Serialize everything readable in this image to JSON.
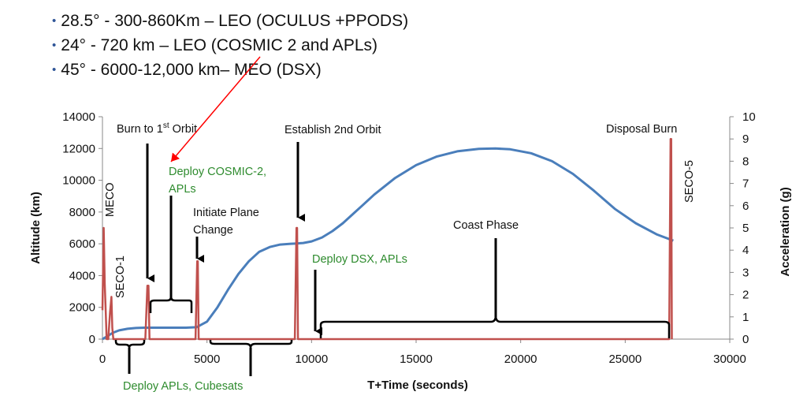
{
  "bullets": [
    "28.5° - 300-860Km – LEO (OCULUS +PPODS)",
    "24° - 720 km – LEO (COSMIC 2 and APLs)",
    "45° - 6000-12,000 km– MEO (DSX)"
  ],
  "colors": {
    "altitude": "#4a7ebb",
    "acceleration": "#c0504d",
    "pointer": "#ff0000",
    "green_text": "#2e8b2e",
    "bullet_dot": "#2f5597"
  },
  "chart_data": {
    "type": "line",
    "xlabel": "T+Time (seconds)",
    "ylabel": "Altitude (km)",
    "y2label": "Acceleration (g)",
    "xlim": [
      0,
      30000
    ],
    "ylim": [
      0,
      14000
    ],
    "y2lim": [
      0,
      10
    ],
    "xticks": [
      0,
      5000,
      10000,
      15000,
      20000,
      25000,
      30000
    ],
    "yticks": [
      0,
      2000,
      4000,
      6000,
      8000,
      10000,
      12000,
      14000
    ],
    "y2ticks": [
      0,
      1,
      2,
      3,
      4,
      5,
      6,
      7,
      8,
      9,
      10
    ],
    "series": [
      {
        "name": "Altitude",
        "axis": "left",
        "x": [
          0,
          250,
          500,
          800,
          1200,
          1600,
          2000,
          2500,
          3000,
          3500,
          4000,
          4500,
          5000,
          5500,
          6000,
          6500,
          7000,
          7500,
          8000,
          8500,
          9000,
          9300,
          9600,
          10000,
          10500,
          11000,
          11500,
          12000,
          12500,
          13000,
          14000,
          15000,
          16000,
          17000,
          18000,
          18800,
          19500,
          20500,
          21500,
          22500,
          23500,
          24500,
          25500,
          26500,
          27000,
          27300
        ],
        "y": [
          0,
          200,
          400,
          550,
          650,
          700,
          720,
          720,
          720,
          720,
          720,
          750,
          1100,
          2000,
          3100,
          4100,
          4900,
          5500,
          5800,
          5950,
          6000,
          6020,
          6050,
          6150,
          6400,
          6800,
          7300,
          7900,
          8500,
          9100,
          10150,
          10950,
          11500,
          11830,
          11980,
          12000,
          11950,
          11700,
          11200,
          10400,
          9350,
          8200,
          7300,
          6600,
          6350,
          6200
        ]
      },
      {
        "name": "Acceleration",
        "axis": "right",
        "x": [
          0,
          60,
          110,
          160,
          200,
          280,
          360,
          430,
          470,
          520,
          2050,
          2150,
          2200,
          2250,
          4450,
          4530,
          4560,
          4600,
          9200,
          9280,
          9310,
          9350,
          27100,
          27170,
          27200,
          27230
        ],
        "y": [
          1.3,
          5.0,
          2.5,
          1.2,
          0,
          0,
          1.2,
          1.9,
          0.5,
          0,
          0,
          2.4,
          2.4,
          0,
          0,
          3.5,
          3.5,
          0,
          0,
          5.0,
          5.0,
          0,
          0,
          9.0,
          9.0,
          0
        ]
      }
    ],
    "annotations": {
      "burn1_a": "Burn to 1",
      "burn1_sup": "st",
      "burn1_b": " Orbit",
      "establish": "Establish 2nd Orbit",
      "disposal": "Disposal Burn",
      "meco": "MECO",
      "seco1": "SECO-1",
      "seco5": "SECO-5",
      "deploy_cosmic_1": "Deploy COSMIC-2,",
      "deploy_cosmic_2": "APLs",
      "plane_1": "Initiate Plane",
      "plane_2": "Change",
      "deploy_dsx": "Deploy DSX, APLs",
      "coast": "Coast Phase",
      "deploy_cubesats": "Deploy APLs, Cubesats"
    }
  }
}
